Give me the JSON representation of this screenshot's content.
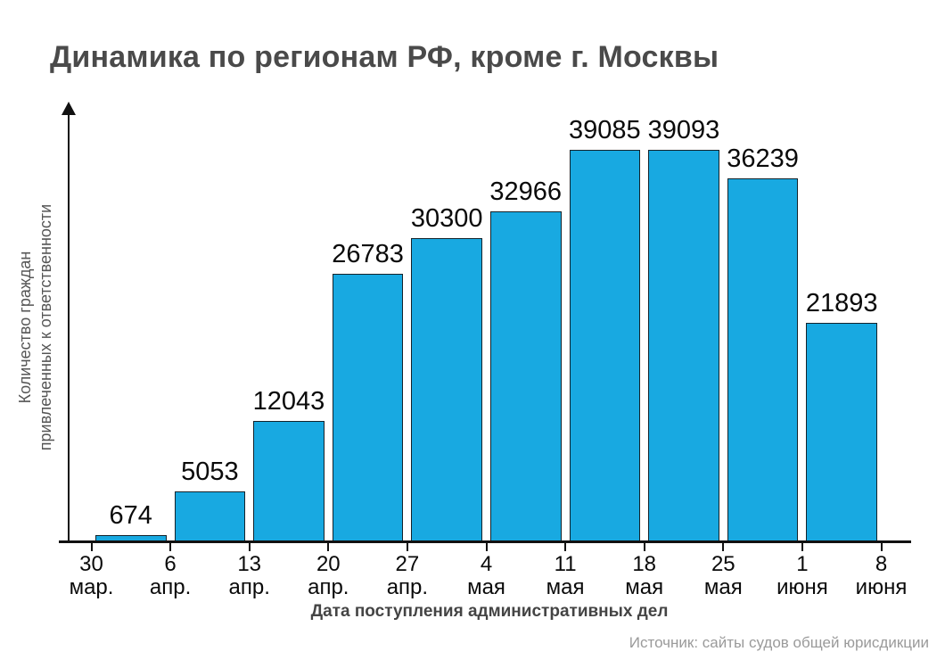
{
  "title": "Динамика по регионам РФ, кроме г. Москвы",
  "source": "Источник: сайты судов общей юрисдикции",
  "chart_data": {
    "type": "bar",
    "title": "Динамика по регионам РФ, кроме г. Москвы",
    "categories": [
      "30\nмар.",
      "6\nапр.",
      "13\nапр.",
      "20\nапр.",
      "27\nапр.",
      "4\nмая",
      "11\nмая",
      "18\nмая",
      "25\nмая",
      "1\nиюня",
      "8\nиюня"
    ],
    "values": [
      674,
      5053,
      12043,
      26783,
      30300,
      32966,
      39085,
      39093,
      36239,
      21893
    ],
    "value_labels": [
      "674",
      "5053",
      "12043",
      "26783",
      "30300",
      "32966",
      "39085",
      "39093",
      "36239",
      "21893"
    ],
    "xlabel": "Дата поступления административных дел",
    "ylabel": "Количество граждан\nпривлеченных к ответственности",
    "ylim": [
      0,
      39093
    ],
    "grid": false,
    "legend": "none",
    "bar_color": "#18a9e1",
    "bar_border_color": "#14232b",
    "axis_color": "#111111",
    "title_color": "#4a4a4a",
    "label_color": "#0a0a0a",
    "source_color": "#9a9a9a"
  }
}
